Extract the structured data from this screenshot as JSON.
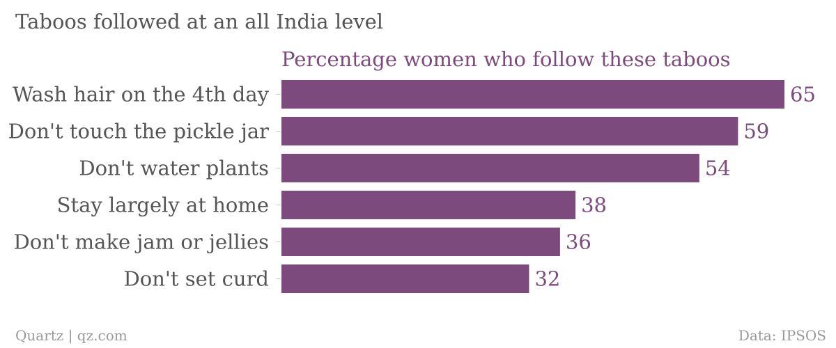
{
  "title": "Taboos followed at an all India level",
  "subtitle": "Percentage women who follow these taboos",
  "footer": {
    "source_left": "Quartz | qz.com",
    "source_right": "Data: IPSOS"
  },
  "colors": {
    "bar": "#7d4a7d",
    "value_label": "#7d4a7d",
    "text": "#555555",
    "tick": "#cccccc",
    "footer": "#999999"
  },
  "chart_data": {
    "type": "bar",
    "orientation": "horizontal",
    "title": "Taboos followed at an all India level",
    "subtitle": "Percentage women who follow these taboos",
    "categories": [
      "Wash hair on the 4th day",
      "Don't touch the pickle jar",
      "Don't water plants",
      "Stay largely at home",
      "Don't make jam or jellies",
      "Don't set curd"
    ],
    "values": [
      65,
      59,
      54,
      38,
      36,
      32
    ],
    "xlabel": "",
    "ylabel": "",
    "xlim": [
      0,
      65
    ],
    "grid": false,
    "data_labels": true
  }
}
